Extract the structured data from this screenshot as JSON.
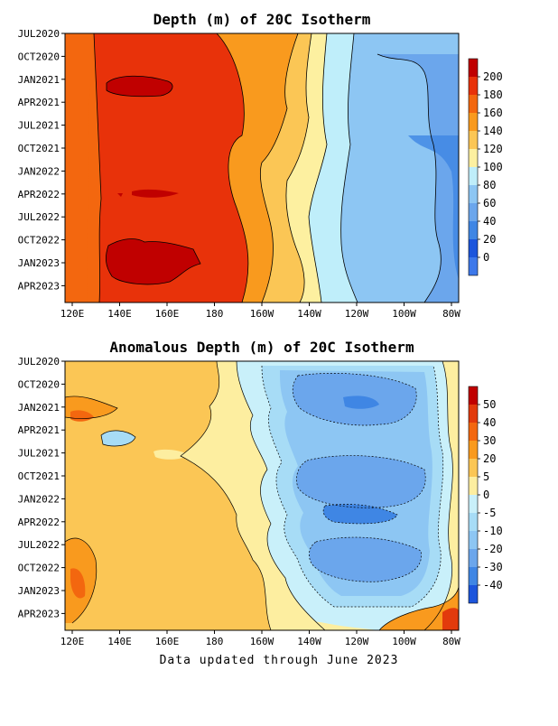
{
  "footer": "Data updated through June 2023",
  "chart_data": [
    {
      "type": "heatmap",
      "title": "Depth (m) of 20C Isotherm",
      "xlabel": "",
      "ylabel": "",
      "x_ticks": [
        "120E",
        "140E",
        "160E",
        "180",
        "160W",
        "140W",
        "120W",
        "100W",
        "80W"
      ],
      "y_ticks": [
        "JUL2020",
        "OCT2020",
        "JAN2021",
        "APR2021",
        "JUL2021",
        "OCT2021",
        "JAN2022",
        "APR2022",
        "JUL2022",
        "OCT2022",
        "JAN2023",
        "APR2023"
      ],
      "colorbar_levels": [
        "200",
        "180",
        "160",
        "140",
        "120",
        "100",
        "80",
        "60",
        "40",
        "20",
        "0"
      ],
      "colorbar_colors": [
        "#c00000",
        "#e8320a",
        "#f3670f",
        "#f99a1e",
        "#fbc655",
        "#fdf0a0",
        "#bfeefa",
        "#8dc6f3",
        "#6ba6ec",
        "#3f86e4",
        "#1c55dc",
        "#3d78ea"
      ],
      "field_description": "Depth ~160-200 m in western Pacific (120E-180), maximum >200 m near 140-160E in early 2021, mid 2022 and late 2022; shoaling eastward through 140-120 m near 160W-140W to 40-80 m east of 120W"
    },
    {
      "type": "heatmap",
      "title": "Anomalous Depth (m) of 20C Isotherm",
      "xlabel": "",
      "ylabel": "",
      "x_ticks": [
        "120E",
        "140E",
        "160E",
        "180",
        "160W",
        "140W",
        "120W",
        "100W",
        "80W"
      ],
      "y_ticks": [
        "JUL2020",
        "OCT2020",
        "JAN2021",
        "APR2021",
        "JUL2021",
        "OCT2021",
        "JAN2022",
        "APR2022",
        "JUL2022",
        "OCT2022",
        "JAN2023",
        "APR2023"
      ],
      "colorbar_levels": [
        "50",
        "40",
        "30",
        "20",
        "5",
        "0",
        "-5",
        "-10",
        "-20",
        "-30",
        "-40"
      ],
      "colorbar_colors": [
        "#c00000",
        "#e23a0c",
        "#f3670f",
        "#f99a1e",
        "#fbc655",
        "#fdeea0",
        "#c9f0fa",
        "#a7dcf6",
        "#8dc6f3",
        "#6ba6ec",
        "#3f86e4",
        "#1c55dc"
      ],
      "field_description": "Positive anomalies of 5-20 m over the western and central Pacific, up to 30-40 m near 120E; negative anomalies of -5 to -30 m between 160W and 100W through 2020-2022; positive anomalies of 20-50 m appearing in the far east in early-mid 2023"
    }
  ]
}
